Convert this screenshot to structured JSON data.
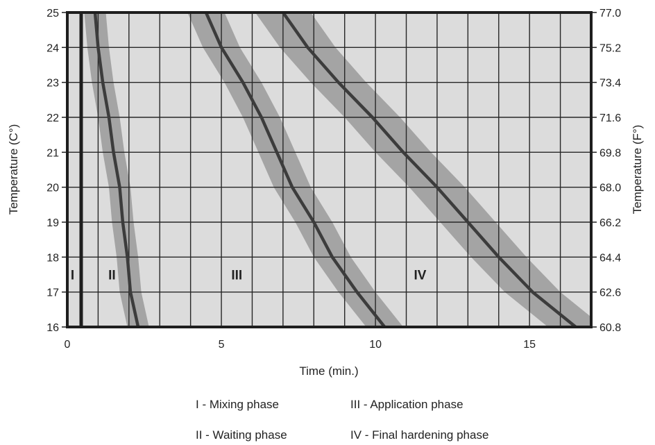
{
  "chart_data": {
    "type": "line",
    "xlabel": "Time (min.)",
    "ylabel_left": "Temperature (C°)",
    "ylabel_right": "Temperature (F°)",
    "xlim": [
      0,
      17
    ],
    "ylim": [
      16,
      25
    ],
    "x_ticks": [
      "0",
      "5",
      "10",
      "15"
    ],
    "y_ticks_left": [
      "16",
      "17",
      "18",
      "19",
      "20",
      "21",
      "22",
      "23",
      "24",
      "25"
    ],
    "y_ticks_right": [
      "60.8",
      "62.6",
      "64.4",
      "66.2",
      "68.0",
      "69.8",
      "71.6",
      "73.4",
      "75.2",
      "77.0"
    ],
    "grid": true,
    "background": "#dcdcdc",
    "band_color": "#a4a4a4",
    "line_color": "#3c3c3c",
    "boundaries": [
      {
        "label": "I|II",
        "points": [
          [
            0.45,
            16
          ],
          [
            0.45,
            25
          ]
        ]
      },
      {
        "label": "II|III",
        "points": [
          [
            0.9,
            25
          ],
          [
            1.0,
            24
          ],
          [
            1.15,
            23
          ],
          [
            1.35,
            22
          ],
          [
            1.5,
            21
          ],
          [
            1.7,
            20
          ],
          [
            1.8,
            19
          ],
          [
            1.95,
            18
          ],
          [
            2.05,
            17
          ],
          [
            2.3,
            16
          ]
        ]
      },
      {
        "label": "III|IV",
        "points": [
          [
            4.5,
            25
          ],
          [
            5.0,
            24
          ],
          [
            5.7,
            23
          ],
          [
            6.3,
            22
          ],
          [
            6.8,
            21
          ],
          [
            7.3,
            20
          ],
          [
            8.0,
            19
          ],
          [
            8.6,
            18
          ],
          [
            9.4,
            17
          ],
          [
            10.3,
            16
          ]
        ]
      },
      {
        "label": "IV|end",
        "points": [
          [
            7.0,
            25
          ],
          [
            7.8,
            24
          ],
          [
            8.8,
            23
          ],
          [
            9.9,
            22
          ],
          [
            10.9,
            21
          ],
          [
            12.0,
            20
          ],
          [
            13.0,
            19
          ],
          [
            14.0,
            18
          ],
          [
            15.1,
            17
          ],
          [
            16.5,
            16
          ]
        ]
      }
    ],
    "band_half_width": [
      0,
      0.35,
      0.6,
      0.9
    ],
    "phase_labels": [
      {
        "text": "I",
        "x": 0.17,
        "y": 17.5
      },
      {
        "text": "II",
        "x": 1.45,
        "y": 17.5
      },
      {
        "text": "III",
        "x": 5.5,
        "y": 17.5
      },
      {
        "text": "IV",
        "x": 11.45,
        "y": 17.5
      }
    ],
    "legend": [
      "I - Mixing phase",
      "II - Waiting phase",
      "III - Application phase",
      "IV - Final hardening phase"
    ]
  }
}
